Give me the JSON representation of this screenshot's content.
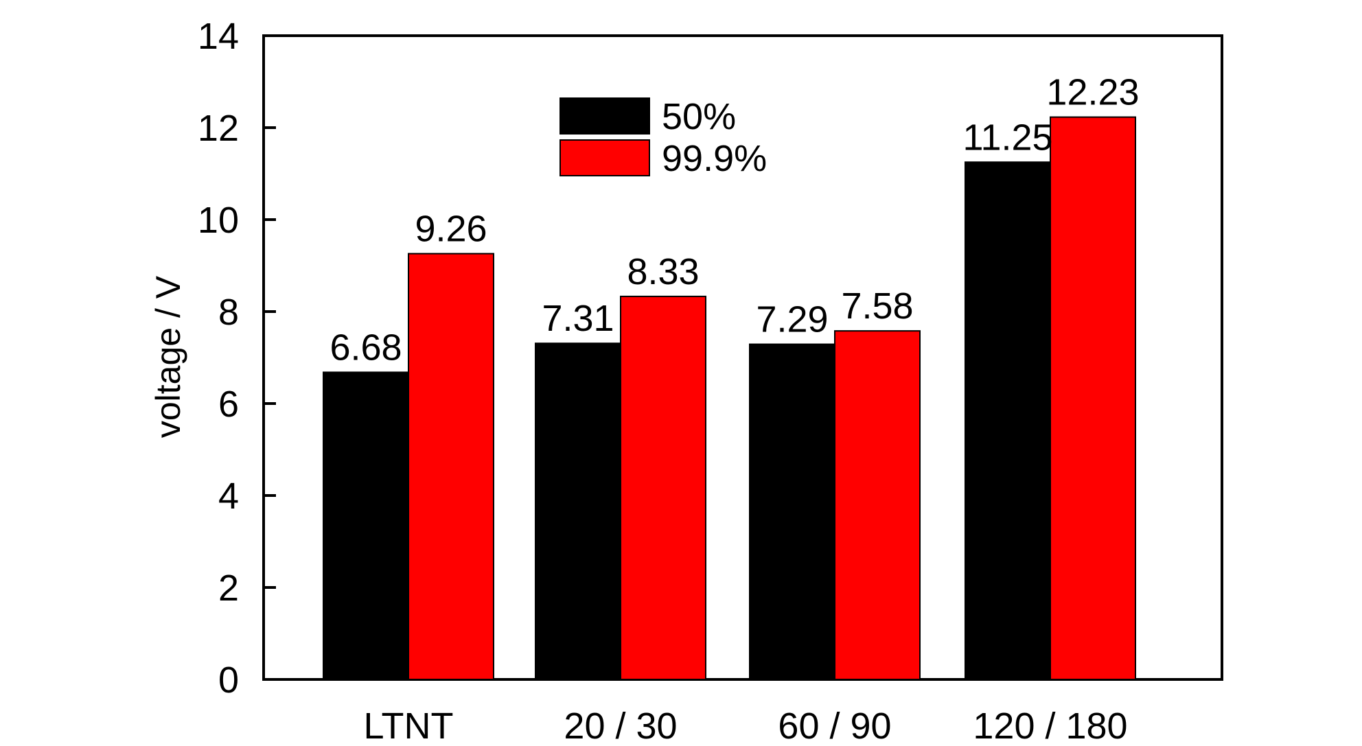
{
  "chart_data": {
    "type": "bar",
    "categories": [
      "LTNT",
      "20 / 30",
      "60 / 90",
      "120 / 180"
    ],
    "series": [
      {
        "name": "50%",
        "values": [
          6.68,
          7.31,
          7.29,
          11.25
        ],
        "color": "#000000"
      },
      {
        "name": "99.9%",
        "values": [
          9.26,
          8.33,
          7.58,
          12.23
        ],
        "color": "#ff0000"
      }
    ],
    "data_labels": [
      [
        "6.68",
        "7.31",
        "7.29",
        "11.25"
      ],
      [
        "9.26",
        "8.33",
        "7.58",
        "12.23"
      ]
    ],
    "title": "",
    "xlabel": "",
    "ylabel": "voltage / V",
    "ylim": [
      0,
      14
    ],
    "yticks": [
      0,
      2,
      4,
      6,
      8,
      10,
      12,
      14
    ],
    "grid": false,
    "legend_position": "top-center"
  }
}
